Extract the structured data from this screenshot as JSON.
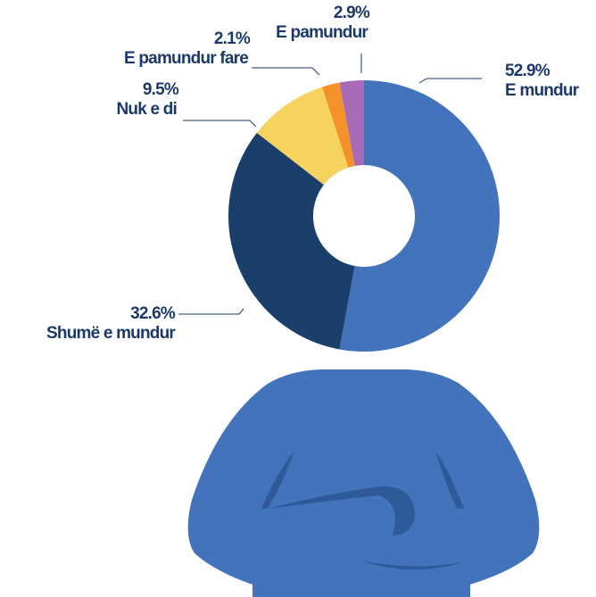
{
  "chart_data": {
    "type": "donut",
    "categories": [
      "E mundur",
      "Shumë e mundur",
      "Nuk e di",
      "E pamundur fare",
      "E pamundur"
    ],
    "values": [
      52.9,
      32.6,
      9.5,
      2.1,
      2.9
    ],
    "value_labels": [
      "52.9%",
      "32.6%",
      "9.5%",
      "2.1%",
      "2.9%"
    ],
    "colors": [
      "#4373ba",
      "#1b3f6b",
      "#f6d35e",
      "#f4922a",
      "#a86bb6"
    ]
  }
}
